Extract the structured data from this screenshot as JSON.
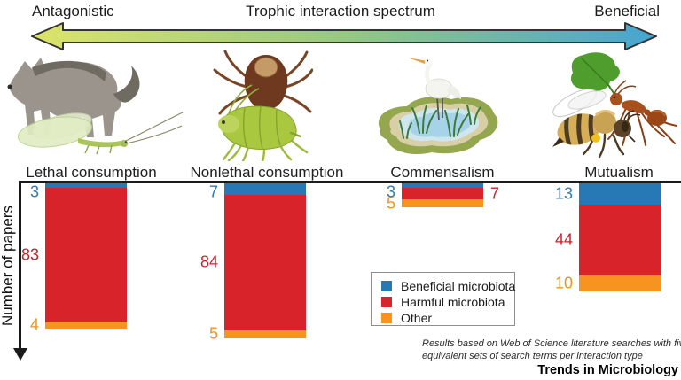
{
  "header": {
    "left_label": "Antagonistic",
    "center_label": "Trophic interaction spectrum",
    "right_label": "Beneficial",
    "arrow_gradient": [
      "#dde468",
      "#96c981",
      "#45a5d3"
    ]
  },
  "illustrations": [
    {
      "name": "wolf-and-lacewing-illustration"
    },
    {
      "name": "tick-on-aphid-illustration"
    },
    {
      "name": "egret-in-pond-illustration"
    },
    {
      "name": "ant-with-leaf-and-bee-illustration"
    }
  ],
  "chart_data": {
    "type": "bar",
    "stacked": true,
    "direction": "downward-from-top-axis",
    "ylabel": "Number of papers",
    "categories": [
      "Lethal consumption",
      "Nonlethal consumption",
      "Commensalism",
      "Mutualism"
    ],
    "series": [
      {
        "name": "Beneficial microbiota",
        "color": "#2779b6",
        "label_color": "#337ab0",
        "values": [
          3,
          7,
          3,
          13
        ]
      },
      {
        "name": "Harmful microbiota",
        "color": "#d8232b",
        "label_color": "#cb2129",
        "values": [
          83,
          84,
          7,
          44
        ]
      },
      {
        "name": "Other",
        "color": "#f79420",
        "label_color": "#f0931f",
        "values": [
          4,
          5,
          5,
          10
        ]
      }
    ],
    "totals": [
      90,
      96,
      15,
      67
    ],
    "value_labels": true,
    "label_side_overrides": {
      "Harmful microbiota": [
        "left",
        "left",
        "right",
        "left"
      ]
    },
    "gridlines": false,
    "legend_position": "inside-bottom-center"
  },
  "legend": {
    "items": [
      {
        "label": "Beneficial microbiota",
        "color": "#2779b6"
      },
      {
        "label": "Harmful microbiota",
        "color": "#d8232b"
      },
      {
        "label": "Other",
        "color": "#f79420"
      }
    ]
  },
  "footnote": {
    "line1": "Results based on Web of Science literature searches with five",
    "line2": "equivalent sets of search terms per interaction type"
  },
  "brand": "Trends in Microbiology"
}
